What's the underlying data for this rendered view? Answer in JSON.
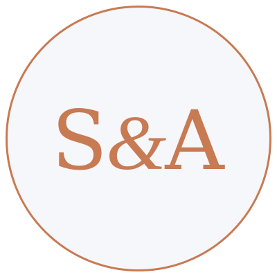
{
  "logo": {
    "letter_left": "S",
    "ampersand": "&",
    "letter_right": "A",
    "accent_color": "#c87a52",
    "background_color": "#f5f7fa"
  }
}
